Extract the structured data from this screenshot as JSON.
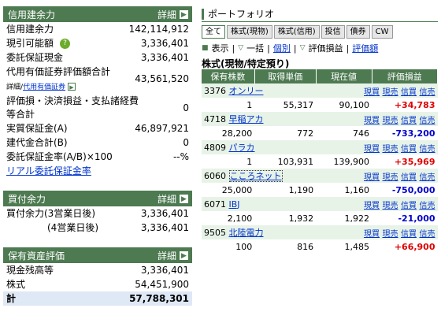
{
  "credit": {
    "title": "信用建余力",
    "detail": "詳細",
    "rows": [
      {
        "label": "信用建余力",
        "value": "142,114,912"
      },
      {
        "label": "現引可能額",
        "value": "3,336,401"
      },
      {
        "label": "委託保証現金",
        "value": "3,336,401"
      },
      {
        "label": "代用有価証券評価額合計",
        "value": "43,561,520"
      },
      {
        "label": "評価損・決済損益・支払諸経費等合計",
        "value": "0"
      },
      {
        "label": "実質保証金(A)",
        "value": "46,897,921"
      },
      {
        "label": "建代金合計(B)",
        "value": "0"
      },
      {
        "label": "委託保証金率(A/B)×100",
        "value": "--%"
      }
    ],
    "sub_detail": "詳細",
    "sub_sep": "/",
    "sub_link": "代用有価証券",
    "realtime_link": "リアル委託保証金率"
  },
  "buying": {
    "title": "買付余力",
    "detail": "詳細",
    "rows": [
      {
        "label": "買付余力(3営業日後)",
        "value": "3,336,401"
      },
      {
        "label": "(4営業日後)",
        "value": "3,336,401"
      }
    ]
  },
  "assets": {
    "title": "保有資産評価",
    "detail": "詳細",
    "rows": [
      {
        "label": "現金残高等",
        "value": "3,336,401"
      },
      {
        "label": "株式",
        "value": "54,451,900"
      },
      {
        "label": "計",
        "value": "57,788,301"
      }
    ]
  },
  "portfolio": {
    "title": "ポートフォリオ",
    "tabs": [
      "全て",
      "株式(現物)",
      "株式(信用)",
      "投信",
      "債券",
      "CW"
    ],
    "toolbar": {
      "view": "表示",
      "list": "一括",
      "individual": "個別",
      "pl": "評価損益",
      "pl_detail": "評価額"
    },
    "section": "株式(現物/特定預り)",
    "headers": [
      "保有株数",
      "取得単価",
      "現在値",
      "評価損益"
    ],
    "actions": [
      "現買",
      "現売",
      "信買",
      "信売"
    ],
    "stocks": [
      {
        "code": "3376",
        "name": "オンリー",
        "qty": "1",
        "cost": "55,317",
        "price": "90,100",
        "pl": "+34,783",
        "sign": "pos"
      },
      {
        "code": "4718",
        "name": "早稲アカ",
        "qty": "28,200",
        "cost": "772",
        "price": "746",
        "pl": "-733,200",
        "sign": "neg"
      },
      {
        "code": "4809",
        "name": "パラカ",
        "qty": "1",
        "cost": "103,931",
        "price": "139,900",
        "pl": "+35,969",
        "sign": "pos"
      },
      {
        "code": "6060",
        "name": "こころネット",
        "qty": "25,000",
        "cost": "1,190",
        "price": "1,160",
        "pl": "-750,000",
        "sign": "neg"
      },
      {
        "code": "6071",
        "name": "IBJ",
        "qty": "2,100",
        "cost": "1,932",
        "price": "1,922",
        "pl": "-21,000",
        "sign": "neg"
      },
      {
        "code": "9505",
        "name": "北陸電力",
        "qty": "100",
        "cost": "816",
        "price": "1,485",
        "pl": "+66,900",
        "sign": "pos"
      }
    ]
  },
  "colors": {
    "header_green": "#4d7a51",
    "positive": "#e00000",
    "negative": "#0000cc",
    "total_bg": "#dfe8f5"
  }
}
